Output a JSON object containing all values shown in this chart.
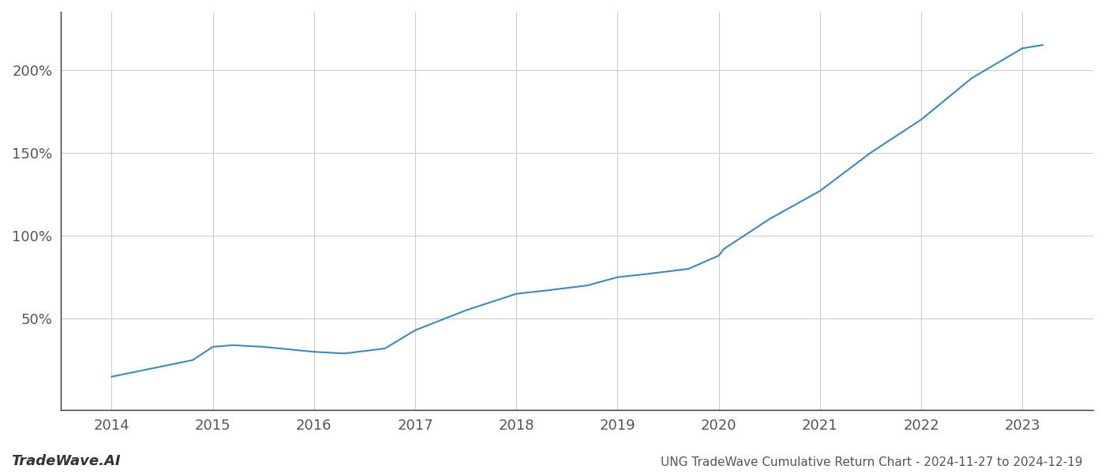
{
  "x_years": [
    2014,
    2014.8,
    2015,
    2015.2,
    2015.5,
    2016,
    2016.3,
    2016.7,
    2017,
    2017.5,
    2018,
    2018.3,
    2018.7,
    2019,
    2019.3,
    2019.7,
    2020,
    2020.05,
    2020.5,
    2021,
    2021.5,
    2022,
    2022.5,
    2023,
    2023.2
  ],
  "y_values": [
    15,
    25,
    33,
    34,
    33,
    30,
    29,
    32,
    43,
    55,
    65,
    67,
    70,
    75,
    77,
    80,
    88,
    92,
    110,
    127,
    150,
    170,
    195,
    213,
    215
  ],
  "line_color": "#3a8abf",
  "line_width": 1.5,
  "title": "UNG TradeWave Cumulative Return Chart - 2024-11-27 to 2024-12-19",
  "watermark": "TradeWave.AI",
  "xlim": [
    2013.5,
    2023.7
  ],
  "ylim": [
    -5,
    235
  ],
  "yticks": [
    50,
    100,
    150,
    200
  ],
  "xticks": [
    2014,
    2015,
    2016,
    2017,
    2018,
    2019,
    2020,
    2021,
    2022,
    2023
  ],
  "grid_color": "#cccccc",
  "bg_color": "#ffffff",
  "title_fontsize": 11,
  "tick_fontsize": 13,
  "watermark_fontsize": 13,
  "spine_color": "#333333"
}
